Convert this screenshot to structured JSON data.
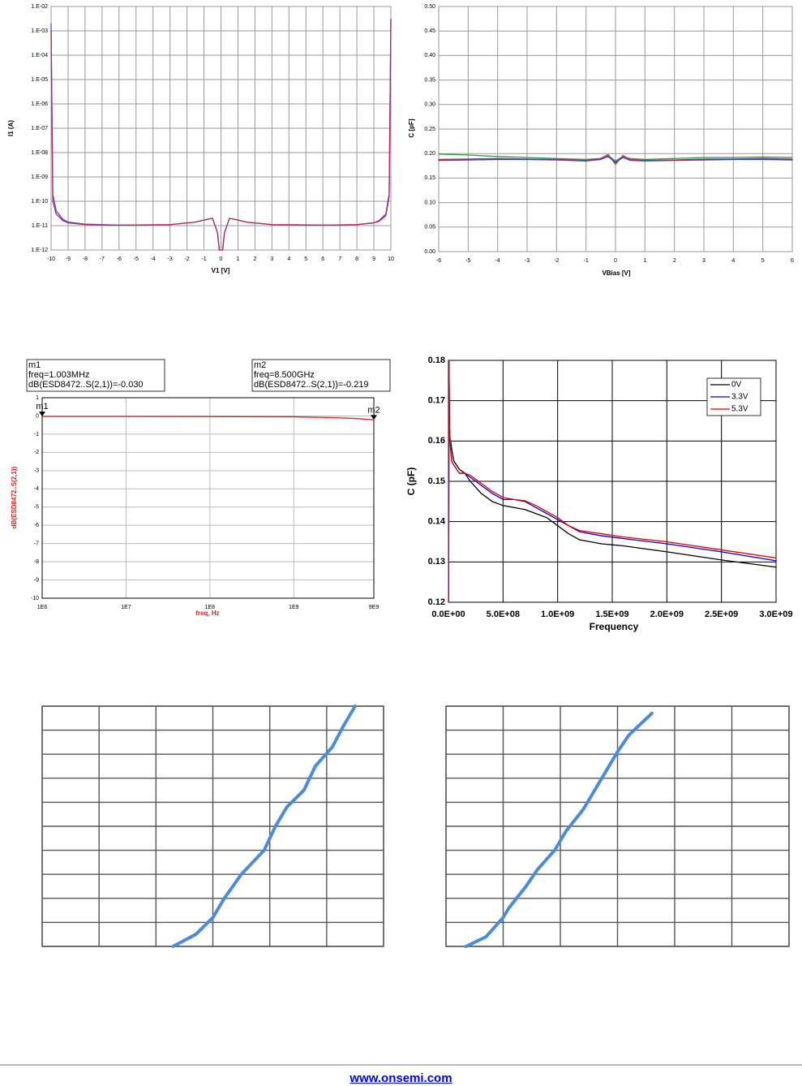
{
  "chart_data": [
    {
      "type": "line",
      "yscale": "log",
      "xlabel": "V1 [V]",
      "ylabel": "I1 (A)",
      "x": [
        -10,
        -9.9,
        -9.7,
        -9.3,
        -9,
        -8,
        -6,
        -3,
        -1.5,
        -1,
        -0.5,
        -0.2,
        -0.1,
        0.1,
        0.2,
        0.5,
        1,
        1.5,
        3,
        6,
        8,
        9,
        9.3,
        9.7,
        9.9,
        10
      ],
      "series": [
        {
          "color": "#4b4bf0",
          "values": [
            0.002,
            2e-10,
            4e-11,
            1.8e-11,
            1.4e-11,
            1.15e-11,
            1.05e-11,
            1.1e-11,
            1.4e-11,
            1.7e-11,
            2e-11,
            5e-12,
            1e-12,
            1e-12,
            5e-12,
            2e-11,
            1.7e-11,
            1.4e-11,
            1.1e-11,
            1.05e-11,
            1.1e-11,
            1.3e-11,
            1.5e-11,
            2.5e-11,
            1.5e-10,
            0.003
          ]
        },
        {
          "color": "#b02a5a",
          "values": [
            0.001,
            1e-10,
            3e-11,
            1.6e-11,
            1.3e-11,
            1.1e-11,
            1.05e-11,
            1.1e-11,
            1.4e-11,
            1.7e-11,
            2e-11,
            5e-12,
            1e-12,
            1e-12,
            5e-12,
            2e-11,
            1.7e-11,
            1.4e-11,
            1.1e-11,
            1.05e-11,
            1.1e-11,
            1.3e-11,
            1.6e-11,
            3e-11,
            2e-10,
            0.003
          ]
        }
      ],
      "xlim": [
        -10,
        10
      ],
      "xticks": [
        -10,
        -9,
        -8,
        -7,
        -6,
        -5,
        -4,
        -3,
        -2,
        -1,
        0,
        1,
        2,
        3,
        4,
        5,
        6,
        7,
        8,
        9,
        10
      ],
      "ylim": [
        1e-12,
        0.01
      ],
      "yticks": [
        {
          "value": 1e-12,
          "label": "1.E-12"
        },
        {
          "value": 1e-11,
          "label": "1.E-11"
        },
        {
          "value": 1e-10,
          "label": "1.E-10"
        },
        {
          "value": 1e-09,
          "label": "1.E-09"
        },
        {
          "value": 1e-08,
          "label": "1.E-08"
        },
        {
          "value": 1e-07,
          "label": "1.E-07"
        },
        {
          "value": 1e-06,
          "label": "1.E-06"
        },
        {
          "value": 1e-05,
          "label": "1.E-05"
        },
        {
          "value": 0.0001,
          "label": "1.E-04"
        },
        {
          "value": 0.001,
          "label": "1.E-03"
        },
        {
          "value": 0.01,
          "label": "1.E-02"
        }
      ],
      "grid": true
    },
    {
      "type": "line",
      "xlabel": "VBias [V]",
      "ylabel": "C [pF]",
      "x": [
        -6,
        -5,
        -4,
        -3,
        -2,
        -1,
        -0.5,
        -0.25,
        0,
        0.25,
        0.5,
        1,
        2,
        3,
        4,
        5,
        6
      ],
      "series": [
        {
          "color": "#2e9a4a",
          "values": [
            0.199,
            0.197,
            0.194,
            0.192,
            0.19,
            0.188,
            0.19,
            0.196,
            0.185,
            0.194,
            0.19,
            0.188,
            0.19,
            0.192,
            0.192,
            0.193,
            0.192
          ]
        },
        {
          "color": "#d03030",
          "values": [
            0.188,
            0.189,
            0.19,
            0.189,
            0.188,
            0.186,
            0.19,
            0.198,
            0.178,
            0.196,
            0.188,
            0.186,
            0.187,
            0.189,
            0.189,
            0.19,
            0.189
          ]
        },
        {
          "color": "#3a3ad0",
          "values": [
            0.186,
            0.187,
            0.188,
            0.188,
            0.187,
            0.185,
            0.188,
            0.194,
            0.182,
            0.192,
            0.186,
            0.185,
            0.186,
            0.187,
            0.188,
            0.188,
            0.187
          ]
        }
      ],
      "xlim": [
        -6,
        6
      ],
      "xticks": [
        -6,
        -5,
        -4,
        -3,
        -2,
        -1,
        0,
        1,
        2,
        3,
        4,
        5,
        6
      ],
      "ylim": [
        0,
        0.5
      ],
      "yticks": [
        {
          "value": 0,
          "label": "0.00"
        },
        {
          "value": 0.05,
          "label": "0.05"
        },
        {
          "value": 0.1,
          "label": "0.10"
        },
        {
          "value": 0.15,
          "label": "0.15"
        },
        {
          "value": 0.2,
          "label": "0.20"
        },
        {
          "value": 0.25,
          "label": "0.25"
        },
        {
          "value": 0.3,
          "label": "0.30"
        },
        {
          "value": 0.35,
          "label": "0.35"
        },
        {
          "value": 0.4,
          "label": "0.40"
        },
        {
          "value": 0.45,
          "label": "0.45"
        },
        {
          "value": 0.5,
          "label": "0.50"
        }
      ],
      "grid": true
    },
    {
      "type": "line",
      "xscale": "log",
      "xlabel": "freq, Hz",
      "ylabel": "dB(ESD8472..S(2,1))",
      "x": [
        1000000.0,
        10000000.0,
        100000000.0,
        1000000000.0,
        3000000000.0,
        6000000000.0,
        9000000000.0
      ],
      "series": [
        {
          "color": "#e02020",
          "values": [
            -0.03,
            -0.03,
            -0.035,
            -0.05,
            -0.09,
            -0.15,
            -0.219
          ]
        }
      ],
      "markers": [
        {
          "name": "m1",
          "lines": [
            "m1",
            "freq=1.003MHz",
            "dB(ESD8472..S(2,1))=-0.030"
          ]
        },
        {
          "name": "m2",
          "lines": [
            "m2",
            "freq=8.500GHz",
            "dB(ESD8472..S(2,1))=-0.219"
          ]
        }
      ],
      "xlim": [
        1000000.0,
        9000000000.0
      ],
      "xticks": [
        {
          "value": 1000000.0,
          "label": "1E6"
        },
        {
          "value": 10000000.0,
          "label": "1E7"
        },
        {
          "value": 100000000.0,
          "label": "1E8"
        },
        {
          "value": 1000000000.0,
          "label": "1E9"
        },
        {
          "value": 9000000000.0,
          "label": "9E9"
        }
      ],
      "ylim": [
        -10,
        1
      ],
      "yticks": [
        -10,
        -9,
        -8,
        -7,
        -6,
        -5,
        -4,
        -3,
        -2,
        -1,
        0,
        1
      ],
      "grid": true
    },
    {
      "type": "line",
      "xlabel": "Frequency",
      "ylabel": "C (pF)",
      "legend": "upper right",
      "x": [
        2000000.0,
        5000000.0,
        10000000.0,
        20000000.0,
        30000000.0,
        50000000.0,
        100000000.0,
        150000000.0,
        200000000.0,
        300000000.0,
        400000000.0,
        500000000.0,
        600000000.0,
        700000000.0,
        800000000.0,
        900000000.0,
        1000000000.0,
        1100000000.0,
        1200000000.0,
        1400000000.0,
        1600000000.0,
        2000000000.0,
        2500000000.0,
        3000000000.0
      ],
      "series": [
        {
          "name": "0V",
          "color": "#000000",
          "values": [
            0.12,
            0.18,
            0.16,
            0.16,
            0.158,
            0.155,
            0.153,
            0.152,
            0.15,
            0.147,
            0.145,
            0.144,
            0.1435,
            0.143,
            0.142,
            0.141,
            0.139,
            0.137,
            0.1355,
            0.1345,
            0.134,
            0.1325,
            0.1305,
            0.1287
          ]
        },
        {
          "name": "3.3V",
          "color": "#0000e0",
          "values": [
            0.12,
            0.18,
            0.163,
            0.158,
            0.155,
            0.154,
            0.152,
            0.152,
            0.151,
            0.149,
            0.147,
            0.1455,
            0.1455,
            0.145,
            0.1435,
            0.142,
            0.1405,
            0.139,
            0.1375,
            0.1365,
            0.1358,
            0.1345,
            0.1325,
            0.1303
          ]
        },
        {
          "name": "5.3V",
          "color": "#e00000",
          "values": [
            0.12,
            0.18,
            0.163,
            0.158,
            0.155,
            0.154,
            0.152,
            0.152,
            0.1515,
            0.1495,
            0.1475,
            0.146,
            0.1455,
            0.1452,
            0.144,
            0.1425,
            0.141,
            0.139,
            0.1378,
            0.137,
            0.1362,
            0.135,
            0.133,
            0.131
          ]
        }
      ],
      "xlim": [
        0,
        3000000000.0
      ],
      "xticks": [
        {
          "value": 0,
          "label": "0.0E+00"
        },
        {
          "value": 500000000.0,
          "label": "5.0E+08"
        },
        {
          "value": 1000000000.0,
          "label": "1.0E+09"
        },
        {
          "value": 1500000000.0,
          "label": "1.5E+09"
        },
        {
          "value": 2000000000.0,
          "label": "2.0E+09"
        },
        {
          "value": 2500000000.0,
          "label": "2.5E+09"
        },
        {
          "value": 3000000000.0,
          "label": "3.0E+09"
        }
      ],
      "ylim": [
        0.12,
        0.18
      ],
      "yticks": [
        {
          "value": 0.12,
          "label": "0.12"
        },
        {
          "value": 0.13,
          "label": "0.13"
        },
        {
          "value": 0.14,
          "label": "0.14"
        },
        {
          "value": 0.15,
          "label": "0.15"
        },
        {
          "value": 0.16,
          "label": "0.16"
        },
        {
          "value": 0.17,
          "label": "0.17"
        },
        {
          "value": 0.18,
          "label": "0.18"
        }
      ],
      "grid": true
    },
    {
      "type": "line",
      "tick_labels": false,
      "series": [
        {
          "color": "#4a8be0",
          "x": [
            2.3,
            2.7,
            3.0,
            3.2,
            3.5,
            3.9,
            4.1,
            4.3,
            4.6,
            4.8,
            5.1,
            5.3,
            5.5
          ],
          "values": [
            0,
            0.5,
            1.2,
            2,
            3,
            4,
            5,
            5.8,
            6.5,
            7.5,
            8.3,
            9.2,
            10
          ]
        }
      ],
      "xlim": [
        0,
        6
      ],
      "xticks": [
        0,
        1,
        2,
        3,
        4,
        5,
        6
      ],
      "ylim": [
        0,
        10
      ],
      "yticks": [
        0,
        1,
        2,
        3,
        4,
        5,
        6,
        7,
        8,
        9,
        10
      ],
      "grid": true
    },
    {
      "type": "line",
      "tick_labels": false,
      "series": [
        {
          "color": "#4a8be0",
          "x": [
            0.35,
            0.7,
            1.0,
            1.1,
            1.4,
            1.6,
            1.9,
            2.1,
            2.4,
            2.6,
            2.8,
            3.0,
            3.2,
            3.6
          ],
          "values": [
            0,
            0.4,
            1.2,
            1.6,
            2.5,
            3.2,
            4,
            4.8,
            5.7,
            6.5,
            7.3,
            8.1,
            8.8,
            9.7
          ]
        }
      ],
      "xlim": [
        0,
        6
      ],
      "xticks": [
        0,
        1,
        2,
        3,
        4,
        5,
        6
      ],
      "ylim": [
        0,
        10
      ],
      "yticks": [
        0,
        1,
        2,
        3,
        4,
        5,
        6,
        7,
        8,
        9,
        10
      ],
      "grid": true
    }
  ],
  "footer": "www.onsemi.com"
}
